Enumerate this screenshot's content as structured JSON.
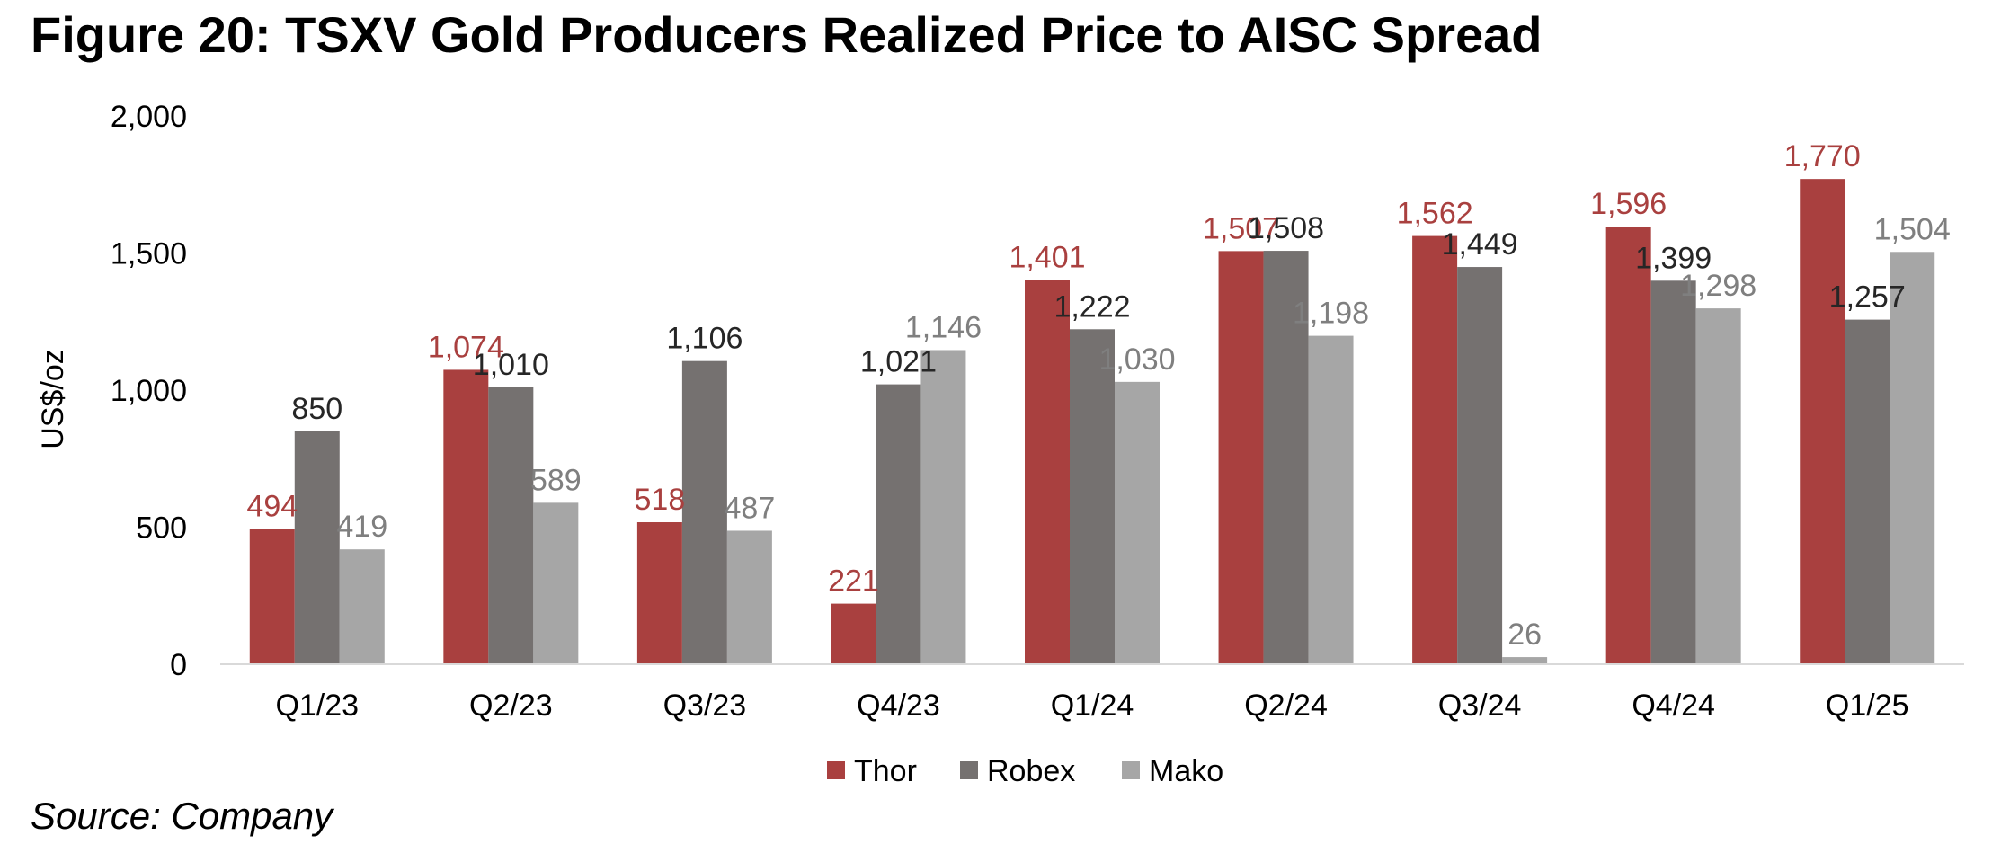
{
  "figure": {
    "title": "Figure 20: TSXV Gold Producers Realized Price to AISC Spread",
    "source": "Source: Company"
  },
  "chart_data": {
    "type": "bar",
    "title": "Figure 20: TSXV Gold Producers Realized Price to AISC Spread",
    "xlabel": "",
    "ylabel": "US$/oz",
    "ylim": [
      0,
      2000
    ],
    "yticks": [
      0,
      500,
      1000,
      1500,
      2000
    ],
    "ytick_labels": [
      "0",
      "500",
      "1,000",
      "1,500",
      "2,000"
    ],
    "grid": false,
    "legend_position": "bottom",
    "categories": [
      "Q1/23",
      "Q2/23",
      "Q3/23",
      "Q4/23",
      "Q1/24",
      "Q2/24",
      "Q3/24",
      "Q4/24",
      "Q1/25"
    ],
    "series": [
      {
        "name": "Thor",
        "color": "#A9403F",
        "label_color": "#A9403F",
        "values": [
          494,
          1074,
          518,
          221,
          1401,
          1507,
          1562,
          1596,
          1770
        ],
        "labels": [
          "494",
          "1,074",
          "518",
          "221",
          "1,401",
          "1,507",
          "1,562",
          "1,596",
          "1,770"
        ]
      },
      {
        "name": "Robex",
        "color": "#757170",
        "label_color": "#262626",
        "values": [
          850,
          1010,
          1106,
          1021,
          1222,
          1508,
          1449,
          1399,
          1257
        ],
        "labels": [
          "850",
          "1,010",
          "1,106",
          "1,021",
          "1,222",
          "1,508",
          "1,449",
          "1,399",
          "1,257"
        ]
      },
      {
        "name": "Mako",
        "color": "#A6A6A6",
        "label_color": "#7F7F7F",
        "values": [
          419,
          589,
          487,
          1146,
          1030,
          1198,
          26,
          1298,
          1504
        ],
        "labels": [
          "419",
          "589",
          "487",
          "1,146",
          "1,030",
          "1,198",
          "26",
          "1,298",
          "1,504"
        ]
      }
    ]
  }
}
